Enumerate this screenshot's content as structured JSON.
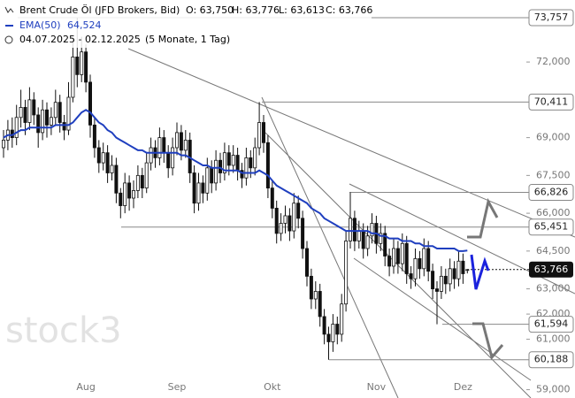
{
  "chart_data": {
    "type": "candlestick",
    "title": "Brent Crude Öl (JFD Brokers, Bid)",
    "ohlc_labels": [
      "O: 63,750",
      "H: 63,776",
      "L: 63,613",
      "C: 63,766"
    ],
    "date_range": "04.07.2025 - 02.12.2025",
    "period": "(5 Monate, 1 Tag)",
    "watermark": "stock3",
    "categories": [
      null,
      null,
      null,
      null,
      null,
      null,
      null,
      null,
      null,
      null,
      null,
      null,
      null,
      null,
      null,
      null,
      null,
      null,
      null,
      "Aug",
      null,
      null,
      null,
      null,
      null,
      null,
      null,
      null,
      null,
      null,
      null,
      null,
      null,
      null,
      null,
      null,
      null,
      null,
      null,
      null,
      "Sep",
      null,
      null,
      null,
      null,
      null,
      null,
      null,
      null,
      null,
      null,
      null,
      null,
      null,
      null,
      null,
      null,
      null,
      null,
      null,
      null,
      null,
      "Okt",
      null,
      null,
      null,
      null,
      null,
      null,
      null,
      null,
      null,
      null,
      null,
      null,
      null,
      null,
      null,
      null,
      null,
      null,
      null,
      null,
      null,
      null,
      null,
      "Nov",
      null,
      null,
      null,
      null,
      null,
      null,
      null,
      null,
      null,
      null,
      null,
      null,
      null,
      null,
      null,
      null,
      null,
      null,
      null,
      "Dez",
      null
    ],
    "series": [
      {
        "name": "Brent Crude Öl (JFD Brokers, Bid)",
        "open": [
          68.6,
          68.9,
          69.3,
          69.0,
          69.8,
          70.2,
          69.6,
          70.5,
          69.9,
          69.2,
          70.1,
          69.5,
          69.8,
          70.4,
          69.6,
          69.3,
          70.6,
          72.2,
          71.5,
          72.4,
          71.2,
          69.5,
          68.6,
          68.0,
          68.4,
          67.6,
          67.9,
          66.8,
          66.3,
          67.2,
          66.6,
          66.9,
          67.5,
          67.0,
          68.0,
          68.6,
          68.2,
          69.0,
          68.4,
          67.8,
          68.6,
          69.2,
          68.5,
          68.9,
          67.6,
          66.4,
          67.2,
          66.8,
          67.8,
          67.2,
          68.1,
          67.6,
          68.4,
          67.9,
          68.3,
          67.7,
          67.4,
          68.2,
          67.8,
          68.6,
          69.6,
          68.8,
          67.0,
          66.2,
          65.2,
          65.6,
          65.9,
          65.3,
          66.4,
          65.8,
          64.6,
          63.5,
          62.6,
          62.9,
          61.9,
          61.2,
          60.9,
          61.6,
          61.2,
          62.4,
          64.9,
          65.8,
          64.9,
          65.3,
          64.6,
          65.1,
          65.6,
          64.8,
          65.2,
          64.3,
          63.9,
          64.6,
          64.0,
          64.8,
          63.6,
          63.4,
          64.2,
          63.8,
          64.6,
          63.7,
          63.0,
          62.9,
          63.5,
          63.2,
          63.8,
          63.4,
          64.1,
          63.75
        ],
        "high": [
          69.3,
          69.7,
          69.8,
          70.3,
          70.9,
          70.5,
          71.0,
          70.8,
          70.2,
          70.5,
          70.4,
          70.2,
          70.9,
          70.7,
          69.9,
          71.2,
          72.9,
          73.757,
          73.0,
          72.7,
          71.5,
          69.8,
          68.9,
          68.8,
          68.7,
          68.3,
          68.2,
          67.0,
          67.6,
          67.5,
          67.3,
          67.9,
          67.8,
          68.4,
          69.0,
          68.9,
          69.4,
          69.3,
          68.7,
          69.0,
          69.6,
          69.5,
          69.3,
          69.2,
          67.9,
          67.6,
          67.5,
          68.2,
          68.1,
          68.5,
          68.4,
          68.8,
          68.7,
          68.7,
          68.6,
          68.0,
          68.6,
          68.5,
          69.0,
          70.411,
          69.9,
          69.1,
          67.3,
          66.5,
          66.0,
          66.3,
          66.2,
          66.8,
          66.7,
          66.1,
          64.9,
          63.8,
          63.3,
          63.2,
          62.2,
          61.5,
          62.0,
          61.9,
          62.8,
          65.3,
          66.826,
          66.1,
          65.7,
          65.6,
          65.5,
          66.0,
          65.9,
          65.6,
          65.5,
          64.6,
          65.0,
          64.9,
          65.2,
          65.1,
          63.9,
          64.6,
          64.5,
          65.0,
          64.9,
          64.0,
          63.3,
          63.9,
          63.8,
          64.2,
          64.1,
          64.5,
          64.4,
          63.776
        ],
        "low": [
          68.2,
          68.5,
          68.6,
          68.7,
          69.4,
          69.1,
          69.3,
          69.5,
          68.6,
          68.9,
          69.0,
          69.1,
          69.5,
          69.2,
          68.9,
          69.1,
          70.4,
          71.0,
          71.2,
          70.8,
          69.0,
          68.2,
          67.6,
          67.7,
          67.2,
          67.3,
          66.4,
          65.8,
          66.0,
          66.1,
          66.2,
          66.6,
          66.6,
          66.8,
          67.7,
          67.8,
          67.9,
          68.0,
          67.4,
          67.5,
          68.3,
          68.1,
          68.2,
          67.2,
          66.0,
          66.1,
          66.4,
          66.5,
          66.8,
          66.9,
          67.2,
          67.3,
          67.5,
          67.6,
          67.3,
          67.0,
          67.1,
          67.4,
          67.5,
          68.3,
          68.4,
          66.6,
          65.8,
          64.8,
          64.9,
          65.2,
          64.9,
          65.0,
          65.4,
          64.2,
          63.1,
          62.2,
          62.2,
          61.5,
          60.8,
          60.188,
          60.5,
          60.8,
          60.9,
          62.1,
          64.6,
          64.5,
          64.6,
          64.2,
          64.3,
          64.8,
          64.4,
          64.5,
          63.9,
          63.5,
          63.6,
          63.6,
          63.7,
          63.2,
          63.0,
          63.1,
          63.4,
          63.5,
          63.3,
          62.6,
          61.594,
          62.6,
          62.8,
          62.9,
          63.0,
          63.1,
          63.2,
          63.613
        ],
        "close": [
          68.9,
          69.3,
          69.0,
          69.8,
          70.2,
          69.6,
          70.5,
          69.9,
          69.2,
          70.1,
          69.5,
          69.8,
          70.4,
          69.6,
          69.3,
          70.6,
          72.2,
          71.5,
          72.4,
          71.2,
          69.5,
          68.6,
          68.0,
          68.4,
          67.6,
          67.9,
          66.8,
          66.3,
          67.2,
          66.6,
          66.9,
          67.5,
          67.0,
          68.0,
          68.6,
          68.2,
          69.0,
          68.4,
          67.8,
          68.6,
          69.2,
          68.5,
          68.9,
          67.6,
          66.4,
          67.2,
          66.8,
          67.8,
          67.2,
          68.1,
          67.6,
          68.4,
          67.9,
          68.3,
          67.7,
          67.4,
          68.2,
          67.8,
          68.6,
          69.6,
          68.8,
          67.0,
          66.2,
          65.2,
          65.6,
          65.9,
          65.3,
          66.4,
          65.8,
          64.6,
          63.5,
          62.6,
          62.9,
          61.9,
          61.2,
          60.9,
          61.6,
          61.2,
          62.4,
          64.9,
          65.8,
          64.9,
          65.3,
          64.6,
          65.1,
          65.6,
          64.8,
          65.2,
          64.3,
          63.9,
          64.6,
          64.0,
          64.8,
          63.6,
          63.4,
          64.2,
          63.8,
          64.6,
          63.7,
          63.0,
          62.9,
          63.5,
          63.2,
          63.8,
          63.4,
          64.1,
          63.6,
          63.766
        ],
        "up_color": "#ffffff",
        "down_color": "#111111"
      },
      {
        "name": "EMA(50)",
        "color": "#1f3fbf",
        "value_label": "64,524",
        "values": [
          69.0,
          69.1,
          69.1,
          69.2,
          69.3,
          69.3,
          69.4,
          69.4,
          69.4,
          69.4,
          69.4,
          69.4,
          69.5,
          69.5,
          69.5,
          69.5,
          69.6,
          69.8,
          70.0,
          70.1,
          70.0,
          69.8,
          69.6,
          69.5,
          69.3,
          69.2,
          69.0,
          68.9,
          68.8,
          68.7,
          68.6,
          68.5,
          68.5,
          68.4,
          68.4,
          68.4,
          68.4,
          68.4,
          68.4,
          68.4,
          68.4,
          68.3,
          68.3,
          68.2,
          68.1,
          68.0,
          67.9,
          67.9,
          67.8,
          67.8,
          67.8,
          67.7,
          67.7,
          67.7,
          67.7,
          67.6,
          67.6,
          67.6,
          67.6,
          67.7,
          67.6,
          67.5,
          67.3,
          67.1,
          67.0,
          66.9,
          66.8,
          66.7,
          66.6,
          66.5,
          66.4,
          66.2,
          66.1,
          66.0,
          65.8,
          65.7,
          65.6,
          65.5,
          65.4,
          65.3,
          65.3,
          65.3,
          65.3,
          65.3,
          65.3,
          65.2,
          65.2,
          65.1,
          65.1,
          65.0,
          65.0,
          65.0,
          64.9,
          64.9,
          64.9,
          64.8,
          64.8,
          64.7,
          64.7,
          64.7,
          64.6,
          64.6,
          64.6,
          64.6,
          64.6,
          64.5,
          64.5,
          64.524
        ]
      }
    ],
    "ylim": [
      58.67,
      74.46
    ],
    "yticks": [
      {
        "value": 72,
        "label": "72,000"
      },
      {
        "value": 69,
        "label": "69,000"
      },
      {
        "value": 67.5,
        "label": "67,500"
      },
      {
        "value": 66,
        "label": "66,000"
      },
      {
        "value": 64.5,
        "label": "64,500"
      },
      {
        "value": 63,
        "label": "63,000"
      },
      {
        "value": 62,
        "label": "62,000"
      },
      {
        "value": 61,
        "label": "61,000"
      },
      {
        "value": 59,
        "label": "59,000"
      }
    ],
    "levels": [
      {
        "value": 73.757,
        "label": "73,757"
      },
      {
        "value": 70.411,
        "label": "70,411"
      },
      {
        "value": 66.826,
        "label": "66,826"
      },
      {
        "value": 65.451,
        "label": "65,451"
      },
      {
        "value": 61.594,
        "label": "61,594"
      },
      {
        "value": 60.188,
        "label": "60,188"
      }
    ],
    "last_price": {
      "value": 63.766,
      "label": "63,766"
    }
  }
}
